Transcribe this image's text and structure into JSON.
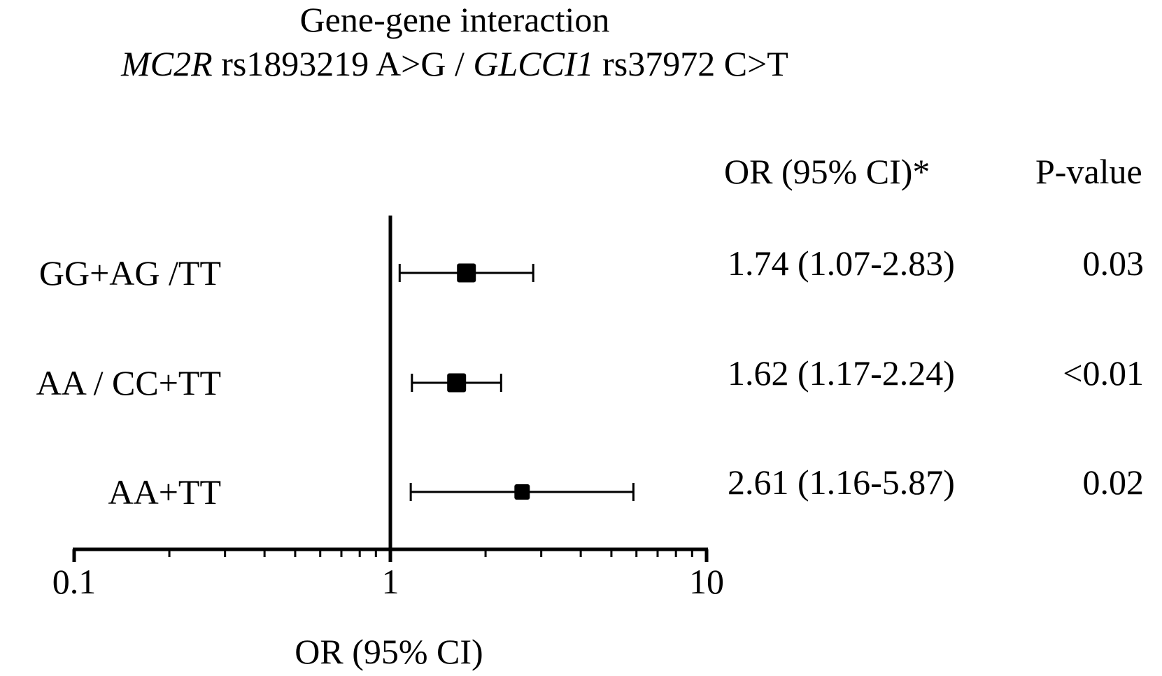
{
  "chart_data": {
    "type": "forest",
    "title": "Gene-gene interaction",
    "subtitle": {
      "gene1": "MC2R",
      "snp1": " rs1893219 A>G / ",
      "gene2": "GLCCI1",
      "snp2": " rs37972 C>T"
    },
    "xlabel": "OR (95% CI)",
    "x_scale": "log",
    "xlim": [
      0.1,
      10
    ],
    "major_ticks": [
      0.1,
      1,
      10
    ],
    "tick_labels": [
      "0.1",
      "1",
      "10"
    ],
    "reference_line": 1,
    "column_headers": {
      "or": "OR (95% CI)*",
      "p": "P-value"
    },
    "rows": [
      {
        "label": "GG+AG /TT",
        "or": 1.74,
        "lower": 1.07,
        "upper": 2.83,
        "or_text": "1.74 (1.07-2.83)",
        "p_text": "0.03",
        "marker": "large"
      },
      {
        "label": "AA / CC+TT",
        "or": 1.62,
        "lower": 1.17,
        "upper": 2.24,
        "or_text": "1.62 (1.17-2.24)",
        "p_text": "<0.01",
        "marker": "large"
      },
      {
        "label": "AA+TT",
        "or": 2.61,
        "lower": 1.16,
        "upper": 5.87,
        "or_text": "2.61 (1.16-5.87)",
        "p_text": "0.02",
        "marker": "small"
      }
    ],
    "colors": {
      "ink": "#000000",
      "background": "#ffffff"
    }
  }
}
